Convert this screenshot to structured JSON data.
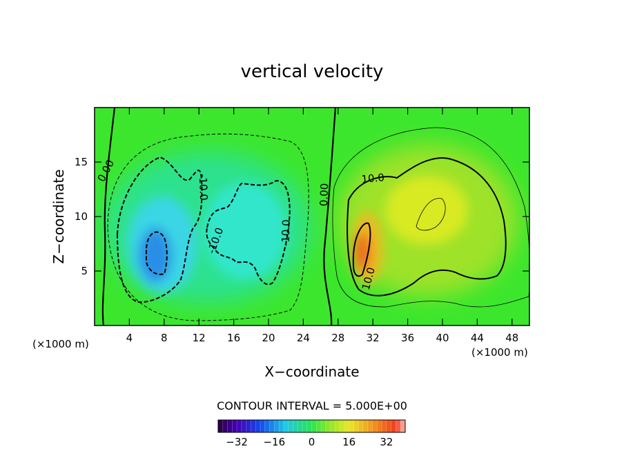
{
  "chart_data": {
    "type": "contour",
    "title": "vertical velocity",
    "xlabel": "X−coordinate",
    "ylabel": "Z−coordinate",
    "x_unit_left": "(×1000 m)",
    "x_unit_right": "(×1000 m)",
    "xlim": [
      0,
      50
    ],
    "ylim": [
      0,
      20
    ],
    "x_ticks": [
      4,
      8,
      12,
      16,
      20,
      24,
      28,
      32,
      36,
      40,
      44,
      48
    ],
    "y_ticks": [
      5,
      10,
      15
    ],
    "contour_interval_text": "CONTOUR INTERVAL = 5.000E+00",
    "contour_labels": [
      {
        "text": "0.00",
        "x": 1.3,
        "y": 14.2,
        "angle": -62
      },
      {
        "text": "-10.0",
        "x": 12.5,
        "y": 12.7,
        "angle": 88
      },
      {
        "text": "-10.0",
        "x": 13.9,
        "y": 7.8,
        "angle": -70
      },
      {
        "text": "-10.0",
        "x": 22.0,
        "y": 8.5,
        "angle": -88
      },
      {
        "text": "0.00",
        "x": 26.4,
        "y": 12.0,
        "angle": -88
      },
      {
        "text": "10.0",
        "x": 32.0,
        "y": 13.5,
        "angle": -5
      },
      {
        "text": "10.0",
        "x": 31.5,
        "y": 4.3,
        "angle": -75
      }
    ],
    "downdraft_min": {
      "x": 7.5,
      "z": 6.5,
      "value": -25
    },
    "updraft_max": {
      "x": 31.0,
      "z": 8.0,
      "value": 30
    },
    "colorbar": {
      "min": -40,
      "max": 40,
      "ticks": [
        -32,
        -16,
        0,
        16,
        32
      ],
      "tick_labels": [
        "−32",
        "−16",
        "0",
        "16",
        "32"
      ]
    }
  }
}
